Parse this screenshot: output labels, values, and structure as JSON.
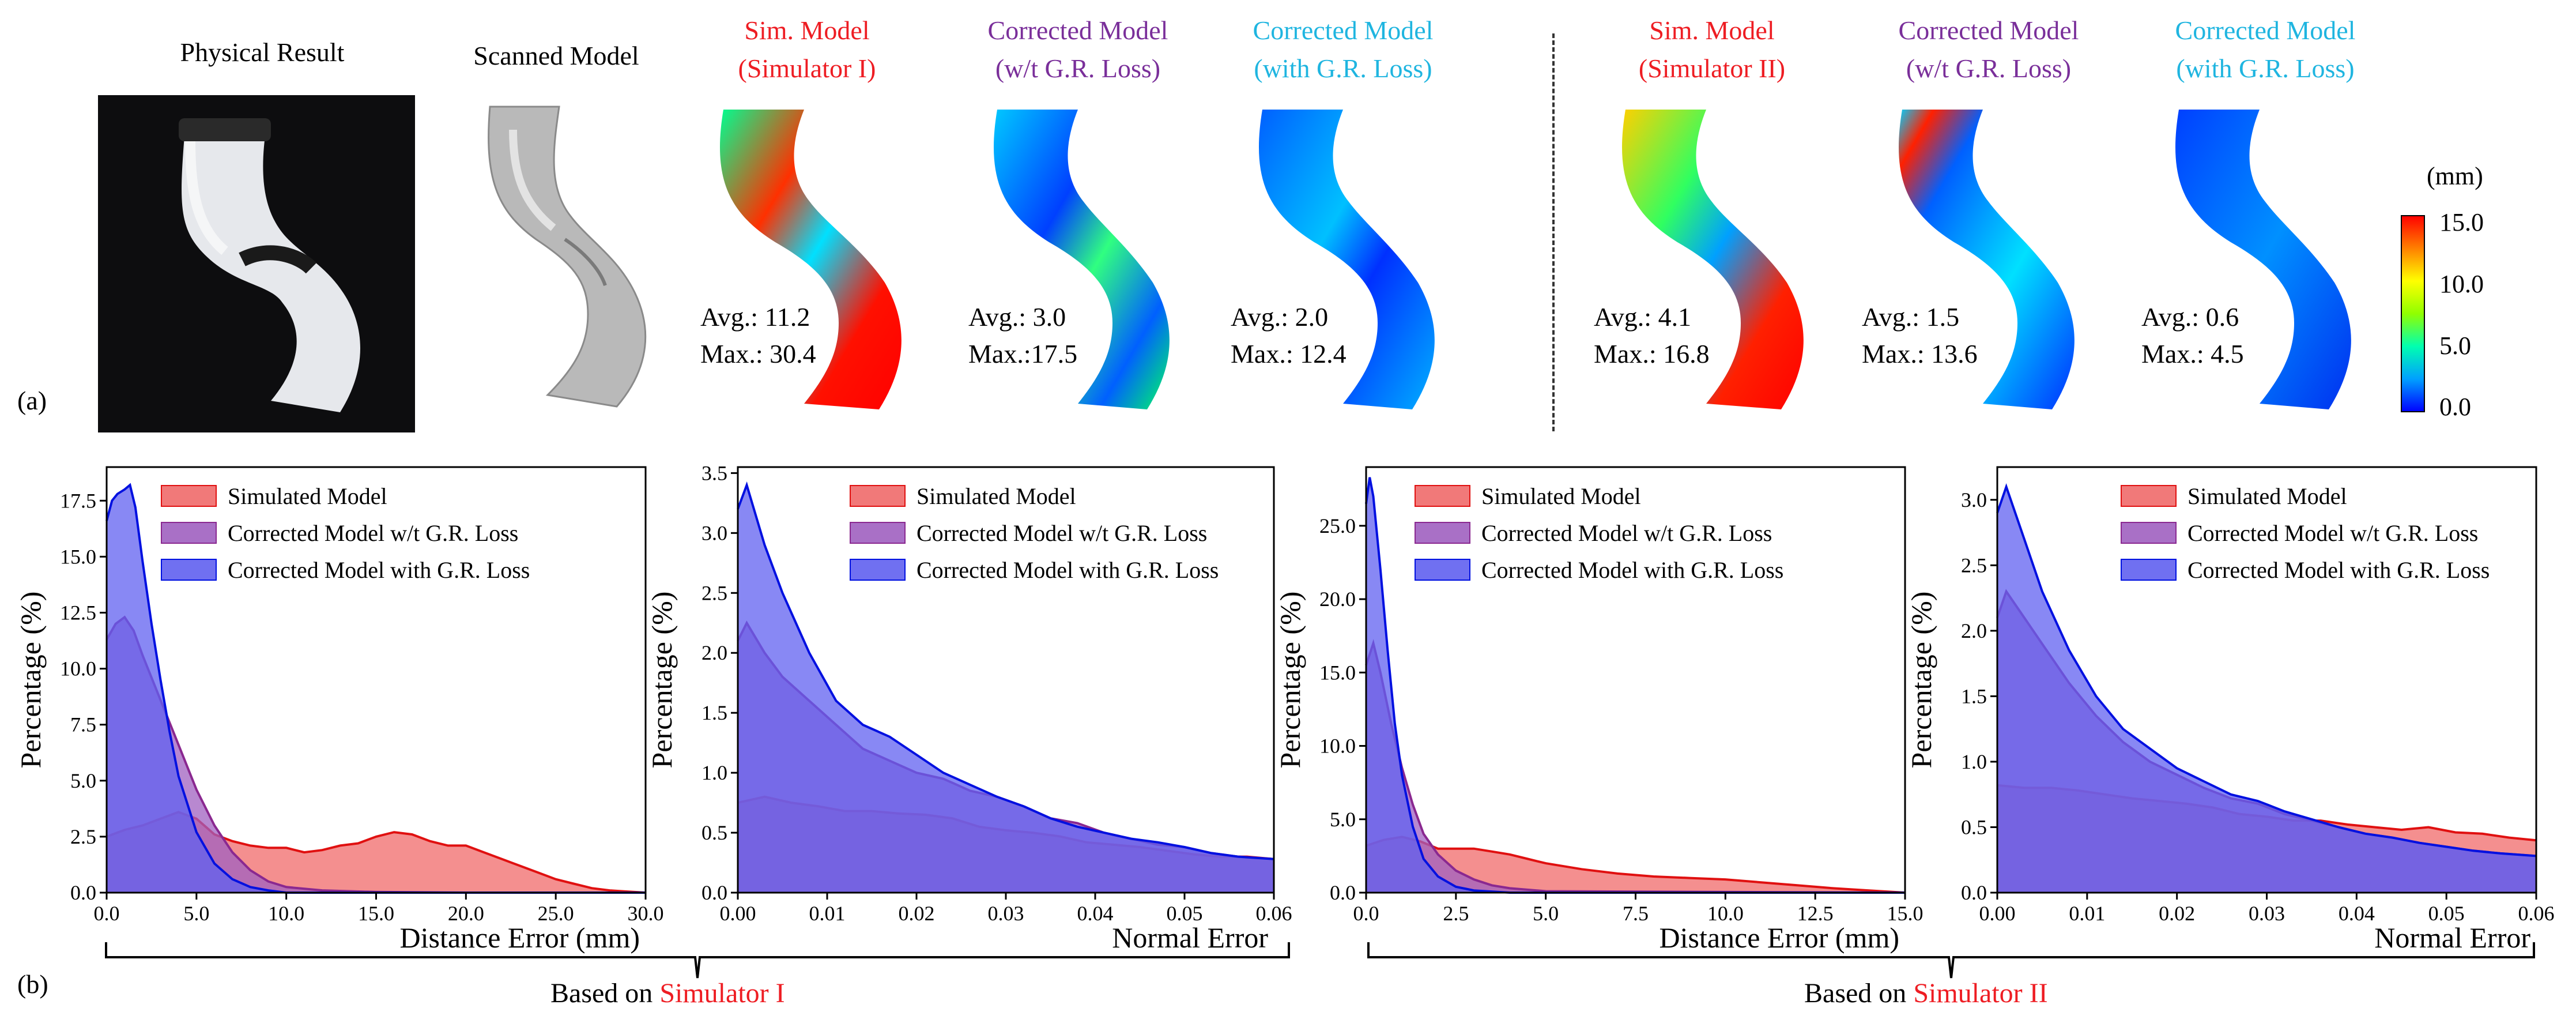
{
  "panel_a": {
    "label": "(a)",
    "physical_result_title": "Physical Result",
    "scanned_model_title": "Scanned Model",
    "columns": [
      {
        "line1": "Sim. Model",
        "line2": "(Simulator I)",
        "color": "#ee1d23",
        "avg": "Avg.: 11.2",
        "max": "Max.: 30.4"
      },
      {
        "line1": "Corrected Model",
        "line2": "(w/t G.R. Loss)",
        "color": "#7a2f9a",
        "avg": "Avg.: 3.0",
        "max": "Max.:17.5"
      },
      {
        "line1": "Corrected Model",
        "line2": "(with G.R. Loss)",
        "color": "#1fb5e0",
        "avg": "Avg.: 2.0",
        "max": "Max.: 12.4"
      },
      {
        "line1": "Sim. Model",
        "line2": "(Simulator II)",
        "color": "#ee1d23",
        "avg": "Avg.: 4.1",
        "max": "Max.: 16.8"
      },
      {
        "line1": "Corrected Model",
        "line2": "(w/t G.R. Loss)",
        "color": "#7a2f9a",
        "avg": "Avg.: 1.5",
        "max": "Max.: 13.6"
      },
      {
        "line1": "Corrected Model",
        "line2": "(with G.R. Loss)",
        "color": "#1fb5e0",
        "avg": "Avg.: 0.6",
        "max": "Max.: 4.5"
      }
    ],
    "colorbar": {
      "unit": "(mm)",
      "ticks": [
        "15.0",
        "10.0",
        "5.0",
        "0.0"
      ],
      "colors": [
        "#0000ff",
        "#00a0ff",
        "#00ffb0",
        "#90ff00",
        "#ffff00",
        "#ff8000",
        "#ff0000"
      ]
    }
  },
  "panel_b": {
    "label": "(b)",
    "groups": [
      {
        "prefix": "Based on ",
        "highlight": "Simulator I",
        "highlight_color": "#ee1d23"
      },
      {
        "prefix": "Based on ",
        "highlight": "Simulator II",
        "highlight_color": "#ee1d23"
      }
    ]
  },
  "chart_data": [
    {
      "type": "area",
      "ylabel": "Percentage (%)",
      "xlabel": "Distance Error (mm)",
      "xlim": [
        0,
        30
      ],
      "ylim": [
        0,
        19
      ],
      "xticks": [
        "0.0",
        "5.0",
        "10.0",
        "15.0",
        "20.0",
        "25.0",
        "30.0"
      ],
      "yticks": [
        "0.0",
        "2.5",
        "5.0",
        "7.5",
        "10.0",
        "12.5",
        "15.0",
        "17.5"
      ],
      "xtick_values": [
        0,
        5,
        10,
        15,
        20,
        25,
        30
      ],
      "ytick_values": [
        0,
        2.5,
        5,
        7.5,
        10,
        12.5,
        15,
        17.5
      ],
      "legend": "top-right",
      "series": [
        {
          "name": "Simulated Model",
          "fill": "#f06a6a",
          "stroke": "#e01010",
          "x": [
            0,
            1,
            2,
            3,
            4,
            5,
            6,
            7,
            8,
            9,
            10,
            11,
            12,
            13,
            14,
            15,
            16,
            17,
            18,
            19,
            20,
            21,
            22,
            23,
            24,
            25,
            26,
            27,
            28,
            29,
            30
          ],
          "y": [
            2.5,
            2.8,
            3.0,
            3.3,
            3.6,
            3.3,
            2.6,
            2.3,
            2.1,
            2.0,
            2.0,
            1.8,
            1.9,
            2.1,
            2.2,
            2.5,
            2.7,
            2.6,
            2.3,
            2.1,
            2.1,
            1.8,
            1.5,
            1.2,
            0.9,
            0.6,
            0.4,
            0.2,
            0.1,
            0.05,
            0.0
          ]
        },
        {
          "name": "Corrected Model w/t G.R. Loss",
          "fill": "#a060c0",
          "stroke": "#8a2890",
          "x": [
            0,
            0.5,
            1,
            1.5,
            2,
            3,
            4,
            5,
            6,
            7,
            8,
            9,
            10,
            12,
            15,
            20,
            30
          ],
          "y": [
            11.3,
            12.0,
            12.3,
            11.7,
            10.6,
            8.6,
            6.6,
            4.6,
            3.0,
            1.8,
            1.0,
            0.5,
            0.25,
            0.1,
            0.03,
            0.0,
            0.0
          ]
        },
        {
          "name": "Corrected Model with G.R. Loss",
          "fill": "#6060f0",
          "stroke": "#0010e0",
          "x": [
            0,
            0.3,
            0.6,
            1,
            1.3,
            1.6,
            2,
            2.5,
            3,
            3.5,
            4,
            5,
            6,
            7,
            8,
            9,
            10,
            30
          ],
          "y": [
            16.6,
            17.5,
            17.8,
            18.0,
            18.2,
            17.2,
            14.8,
            12.0,
            9.5,
            7.2,
            5.2,
            2.7,
            1.3,
            0.6,
            0.25,
            0.1,
            0.0,
            0.0
          ]
        }
      ]
    },
    {
      "type": "area",
      "ylabel": "Percentage (%)",
      "xlabel": "Normal Error",
      "xlim": [
        0,
        0.06
      ],
      "ylim": [
        0,
        3.55
      ],
      "xticks": [
        "0.00",
        "0.01",
        "0.02",
        "0.03",
        "0.04",
        "0.05",
        "0.06"
      ],
      "yticks": [
        "0.0",
        "0.5",
        "1.0",
        "1.5",
        "2.0",
        "2.5",
        "3.0",
        "3.5"
      ],
      "xtick_values": [
        0,
        0.01,
        0.02,
        0.03,
        0.04,
        0.05,
        0.06
      ],
      "ytick_values": [
        0,
        0.5,
        1,
        1.5,
        2,
        2.5,
        3,
        3.5
      ],
      "legend": "top-right",
      "series": [
        {
          "name": "Simulated Model",
          "fill": "#f06a6a",
          "stroke": "#e01010",
          "x": [
            0,
            0.003,
            0.006,
            0.009,
            0.012,
            0.015,
            0.018,
            0.021,
            0.024,
            0.027,
            0.03,
            0.033,
            0.036,
            0.039,
            0.042,
            0.045,
            0.048,
            0.051,
            0.054,
            0.057,
            0.06
          ],
          "y": [
            0.75,
            0.8,
            0.75,
            0.72,
            0.68,
            0.68,
            0.66,
            0.65,
            0.62,
            0.55,
            0.52,
            0.5,
            0.47,
            0.42,
            0.4,
            0.38,
            0.35,
            0.32,
            0.3,
            0.3,
            0.28
          ]
        },
        {
          "name": "Corrected Model w/t G.R. Loss",
          "fill": "#a060c0",
          "stroke": "#8a2890",
          "x": [
            0,
            0.001,
            0.003,
            0.005,
            0.008,
            0.011,
            0.014,
            0.017,
            0.02,
            0.023,
            0.026,
            0.029,
            0.032,
            0.035,
            0.038,
            0.041,
            0.044,
            0.047,
            0.05,
            0.053,
            0.056,
            0.06
          ],
          "y": [
            2.1,
            2.25,
            2.0,
            1.8,
            1.6,
            1.4,
            1.2,
            1.1,
            1.0,
            0.95,
            0.85,
            0.8,
            0.72,
            0.62,
            0.58,
            0.5,
            0.45,
            0.4,
            0.38,
            0.33,
            0.3,
            0.28
          ]
        },
        {
          "name": "Corrected Model with G.R. Loss",
          "fill": "#6060f0",
          "stroke": "#0010e0",
          "x": [
            0,
            0.001,
            0.003,
            0.005,
            0.008,
            0.011,
            0.014,
            0.017,
            0.02,
            0.023,
            0.026,
            0.029,
            0.032,
            0.035,
            0.038,
            0.041,
            0.044,
            0.047,
            0.05,
            0.053,
            0.056,
            0.06
          ],
          "y": [
            3.2,
            3.4,
            2.9,
            2.5,
            2.0,
            1.6,
            1.4,
            1.3,
            1.15,
            1.0,
            0.9,
            0.8,
            0.72,
            0.62,
            0.55,
            0.5,
            0.45,
            0.42,
            0.38,
            0.33,
            0.3,
            0.28
          ]
        }
      ]
    },
    {
      "type": "area",
      "ylabel": "Percentage (%)",
      "xlabel": "Distance Error (mm)",
      "xlim": [
        0,
        15
      ],
      "ylim": [
        0,
        29
      ],
      "xticks": [
        "0.0",
        "2.5",
        "5.0",
        "7.5",
        "10.0",
        "12.5",
        "15.0"
      ],
      "yticks": [
        "0.0",
        "5.0",
        "10.0",
        "15.0",
        "20.0",
        "25.0"
      ],
      "xtick_values": [
        0,
        2.5,
        5,
        7.5,
        10,
        12.5,
        15
      ],
      "ytick_values": [
        0,
        5,
        10,
        15,
        20,
        25
      ],
      "legend": "top-right",
      "series": [
        {
          "name": "Simulated Model",
          "fill": "#f06a6a",
          "stroke": "#e01010",
          "x": [
            0,
            0.5,
            1,
            1.5,
            2,
            2.5,
            3,
            3.5,
            4,
            4.5,
            5,
            6,
            7,
            8,
            9,
            10,
            11,
            12,
            13,
            14,
            15
          ],
          "y": [
            3.2,
            3.6,
            3.8,
            3.5,
            3.0,
            3.0,
            3.0,
            2.8,
            2.6,
            2.3,
            2.0,
            1.6,
            1.3,
            1.1,
            1.0,
            0.9,
            0.7,
            0.5,
            0.3,
            0.15,
            0.0
          ]
        },
        {
          "name": "Corrected Model w/t G.R. Loss",
          "fill": "#a060c0",
          "stroke": "#8a2890",
          "x": [
            0,
            0.2,
            0.4,
            0.7,
            1,
            1.3,
            1.6,
            2,
            2.5,
            3,
            3.5,
            4,
            5,
            15
          ],
          "y": [
            15.5,
            17.0,
            15.0,
            11.5,
            8.5,
            6.0,
            4.0,
            2.6,
            1.5,
            0.9,
            0.5,
            0.3,
            0.1,
            0.0
          ]
        },
        {
          "name": "Corrected Model with G.R. Loss",
          "fill": "#6060f0",
          "stroke": "#0010e0",
          "x": [
            0,
            0.1,
            0.2,
            0.4,
            0.6,
            0.8,
            1,
            1.3,
            1.6,
            2,
            2.5,
            3,
            4,
            15
          ],
          "y": [
            26.5,
            28.3,
            27.0,
            22.0,
            16.5,
            11.5,
            8.0,
            4.5,
            2.3,
            1.1,
            0.4,
            0.15,
            0.0,
            0.0
          ]
        }
      ]
    },
    {
      "type": "area",
      "ylabel": "Percentage (%)",
      "xlabel": "Normal Error",
      "xlim": [
        0,
        0.06
      ],
      "ylim": [
        0,
        3.25
      ],
      "xticks": [
        "0.00",
        "0.01",
        "0.02",
        "0.03",
        "0.04",
        "0.05",
        "0.06"
      ],
      "yticks": [
        "0.0",
        "0.5",
        "1.0",
        "1.5",
        "2.0",
        "2.5",
        "3.0"
      ],
      "xtick_values": [
        0,
        0.01,
        0.02,
        0.03,
        0.04,
        0.05,
        0.06
      ],
      "ytick_values": [
        0,
        0.5,
        1,
        1.5,
        2,
        2.5,
        3
      ],
      "legend": "top-right",
      "series": [
        {
          "name": "Simulated Model",
          "fill": "#f06a6a",
          "stroke": "#e01010",
          "x": [
            0,
            0.003,
            0.006,
            0.009,
            0.012,
            0.015,
            0.018,
            0.021,
            0.024,
            0.027,
            0.03,
            0.033,
            0.036,
            0.039,
            0.042,
            0.045,
            0.048,
            0.051,
            0.054,
            0.057,
            0.06
          ],
          "y": [
            0.82,
            0.8,
            0.8,
            0.78,
            0.75,
            0.72,
            0.7,
            0.68,
            0.65,
            0.6,
            0.58,
            0.55,
            0.55,
            0.52,
            0.5,
            0.48,
            0.5,
            0.46,
            0.45,
            0.42,
            0.4
          ]
        },
        {
          "name": "Corrected Model w/t G.R. Loss",
          "fill": "#a060c0",
          "stroke": "#8a2890",
          "x": [
            0,
            0.001,
            0.003,
            0.005,
            0.008,
            0.011,
            0.014,
            0.017,
            0.02,
            0.023,
            0.026,
            0.029,
            0.032,
            0.035,
            0.038,
            0.041,
            0.044,
            0.047,
            0.05,
            0.053,
            0.056,
            0.06
          ],
          "y": [
            2.1,
            2.3,
            2.1,
            1.9,
            1.6,
            1.35,
            1.15,
            1.0,
            0.9,
            0.8,
            0.72,
            0.68,
            0.6,
            0.55,
            0.5,
            0.45,
            0.42,
            0.38,
            0.35,
            0.32,
            0.3,
            0.28
          ]
        },
        {
          "name": "Corrected Model with G.R. Loss",
          "fill": "#6060f0",
          "stroke": "#0010e0",
          "x": [
            0,
            0.001,
            0.003,
            0.005,
            0.008,
            0.011,
            0.014,
            0.017,
            0.02,
            0.023,
            0.026,
            0.029,
            0.032,
            0.035,
            0.038,
            0.041,
            0.044,
            0.047,
            0.05,
            0.053,
            0.056,
            0.06
          ],
          "y": [
            2.9,
            3.1,
            2.7,
            2.3,
            1.85,
            1.5,
            1.25,
            1.1,
            0.95,
            0.85,
            0.75,
            0.7,
            0.62,
            0.56,
            0.5,
            0.45,
            0.42,
            0.38,
            0.35,
            0.32,
            0.3,
            0.28
          ]
        }
      ]
    }
  ]
}
